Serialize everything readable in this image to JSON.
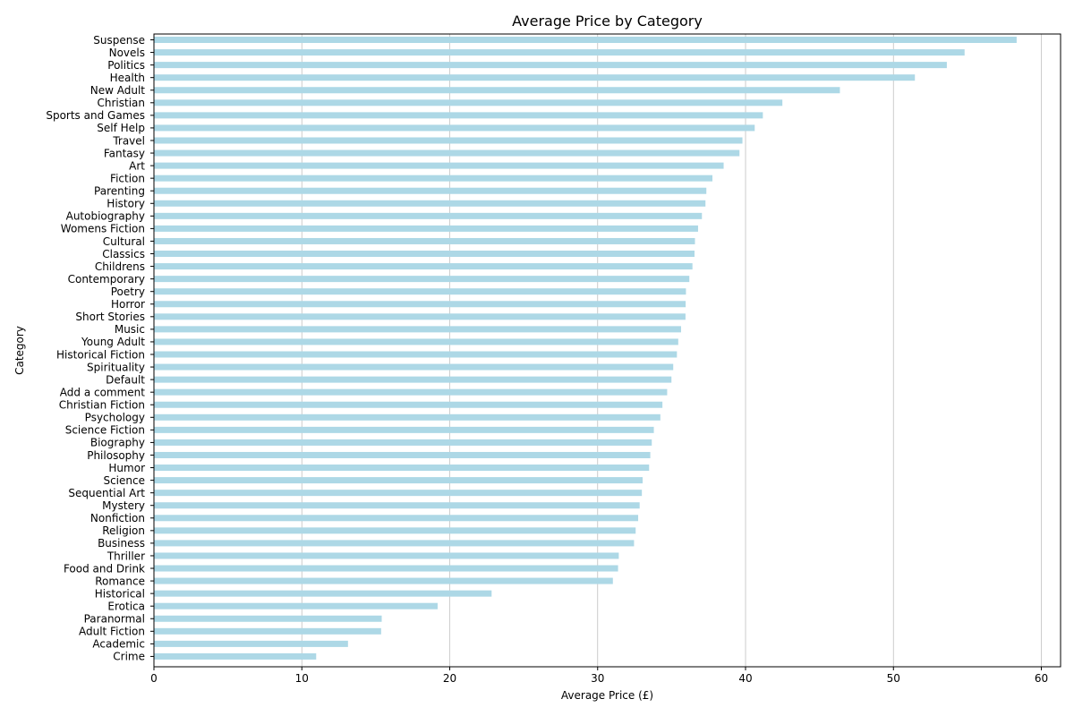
{
  "chart_data": {
    "type": "bar",
    "orientation": "horizontal",
    "title": "Average Price by Category",
    "xlabel": "Average Price (£)",
    "ylabel": "Category",
    "xlim": [
      0,
      61.3
    ],
    "xticks": [
      0,
      10,
      20,
      30,
      40,
      50,
      60
    ],
    "grid": "x",
    "bar_color": "#add8e6",
    "categories": [
      "Suspense",
      "Novels",
      "Politics",
      "Health",
      "New Adult",
      "Christian",
      "Sports and Games",
      "Self Help",
      "Travel",
      "Fantasy",
      "Art",
      "Fiction",
      "Parenting",
      "History",
      "Autobiography",
      "Womens Fiction",
      "Cultural",
      "Classics",
      "Childrens",
      "Contemporary",
      "Poetry",
      "Horror",
      "Short Stories",
      "Music",
      "Young Adult",
      "Historical Fiction",
      "Spirituality",
      "Default",
      "Add a comment",
      "Christian Fiction",
      "Psychology",
      "Science Fiction",
      "Biography",
      "Philosophy",
      "Humor",
      "Science",
      "Sequential Art",
      "Mystery",
      "Nonfiction",
      "Religion",
      "Business",
      "Thriller",
      "Food and Drink",
      "Romance",
      "Historical",
      "Erotica",
      "Paranormal",
      "Adult Fiction",
      "Academic",
      "Crime"
    ],
    "values": [
      58.33,
      54.81,
      53.61,
      51.45,
      46.38,
      42.49,
      41.17,
      40.62,
      39.79,
      39.59,
      38.52,
      37.76,
      37.35,
      37.29,
      37.05,
      36.79,
      36.58,
      36.55,
      36.41,
      36.2,
      35.97,
      35.95,
      35.94,
      35.64,
      35.45,
      35.36,
      35.11,
      34.99,
      34.7,
      34.38,
      34.24,
      33.8,
      33.66,
      33.56,
      33.48,
      33.04,
      32.99,
      32.84,
      32.74,
      32.57,
      32.46,
      31.43,
      31.38,
      31.03,
      22.83,
      19.18,
      15.4,
      15.36,
      13.12,
      10.97
    ]
  }
}
